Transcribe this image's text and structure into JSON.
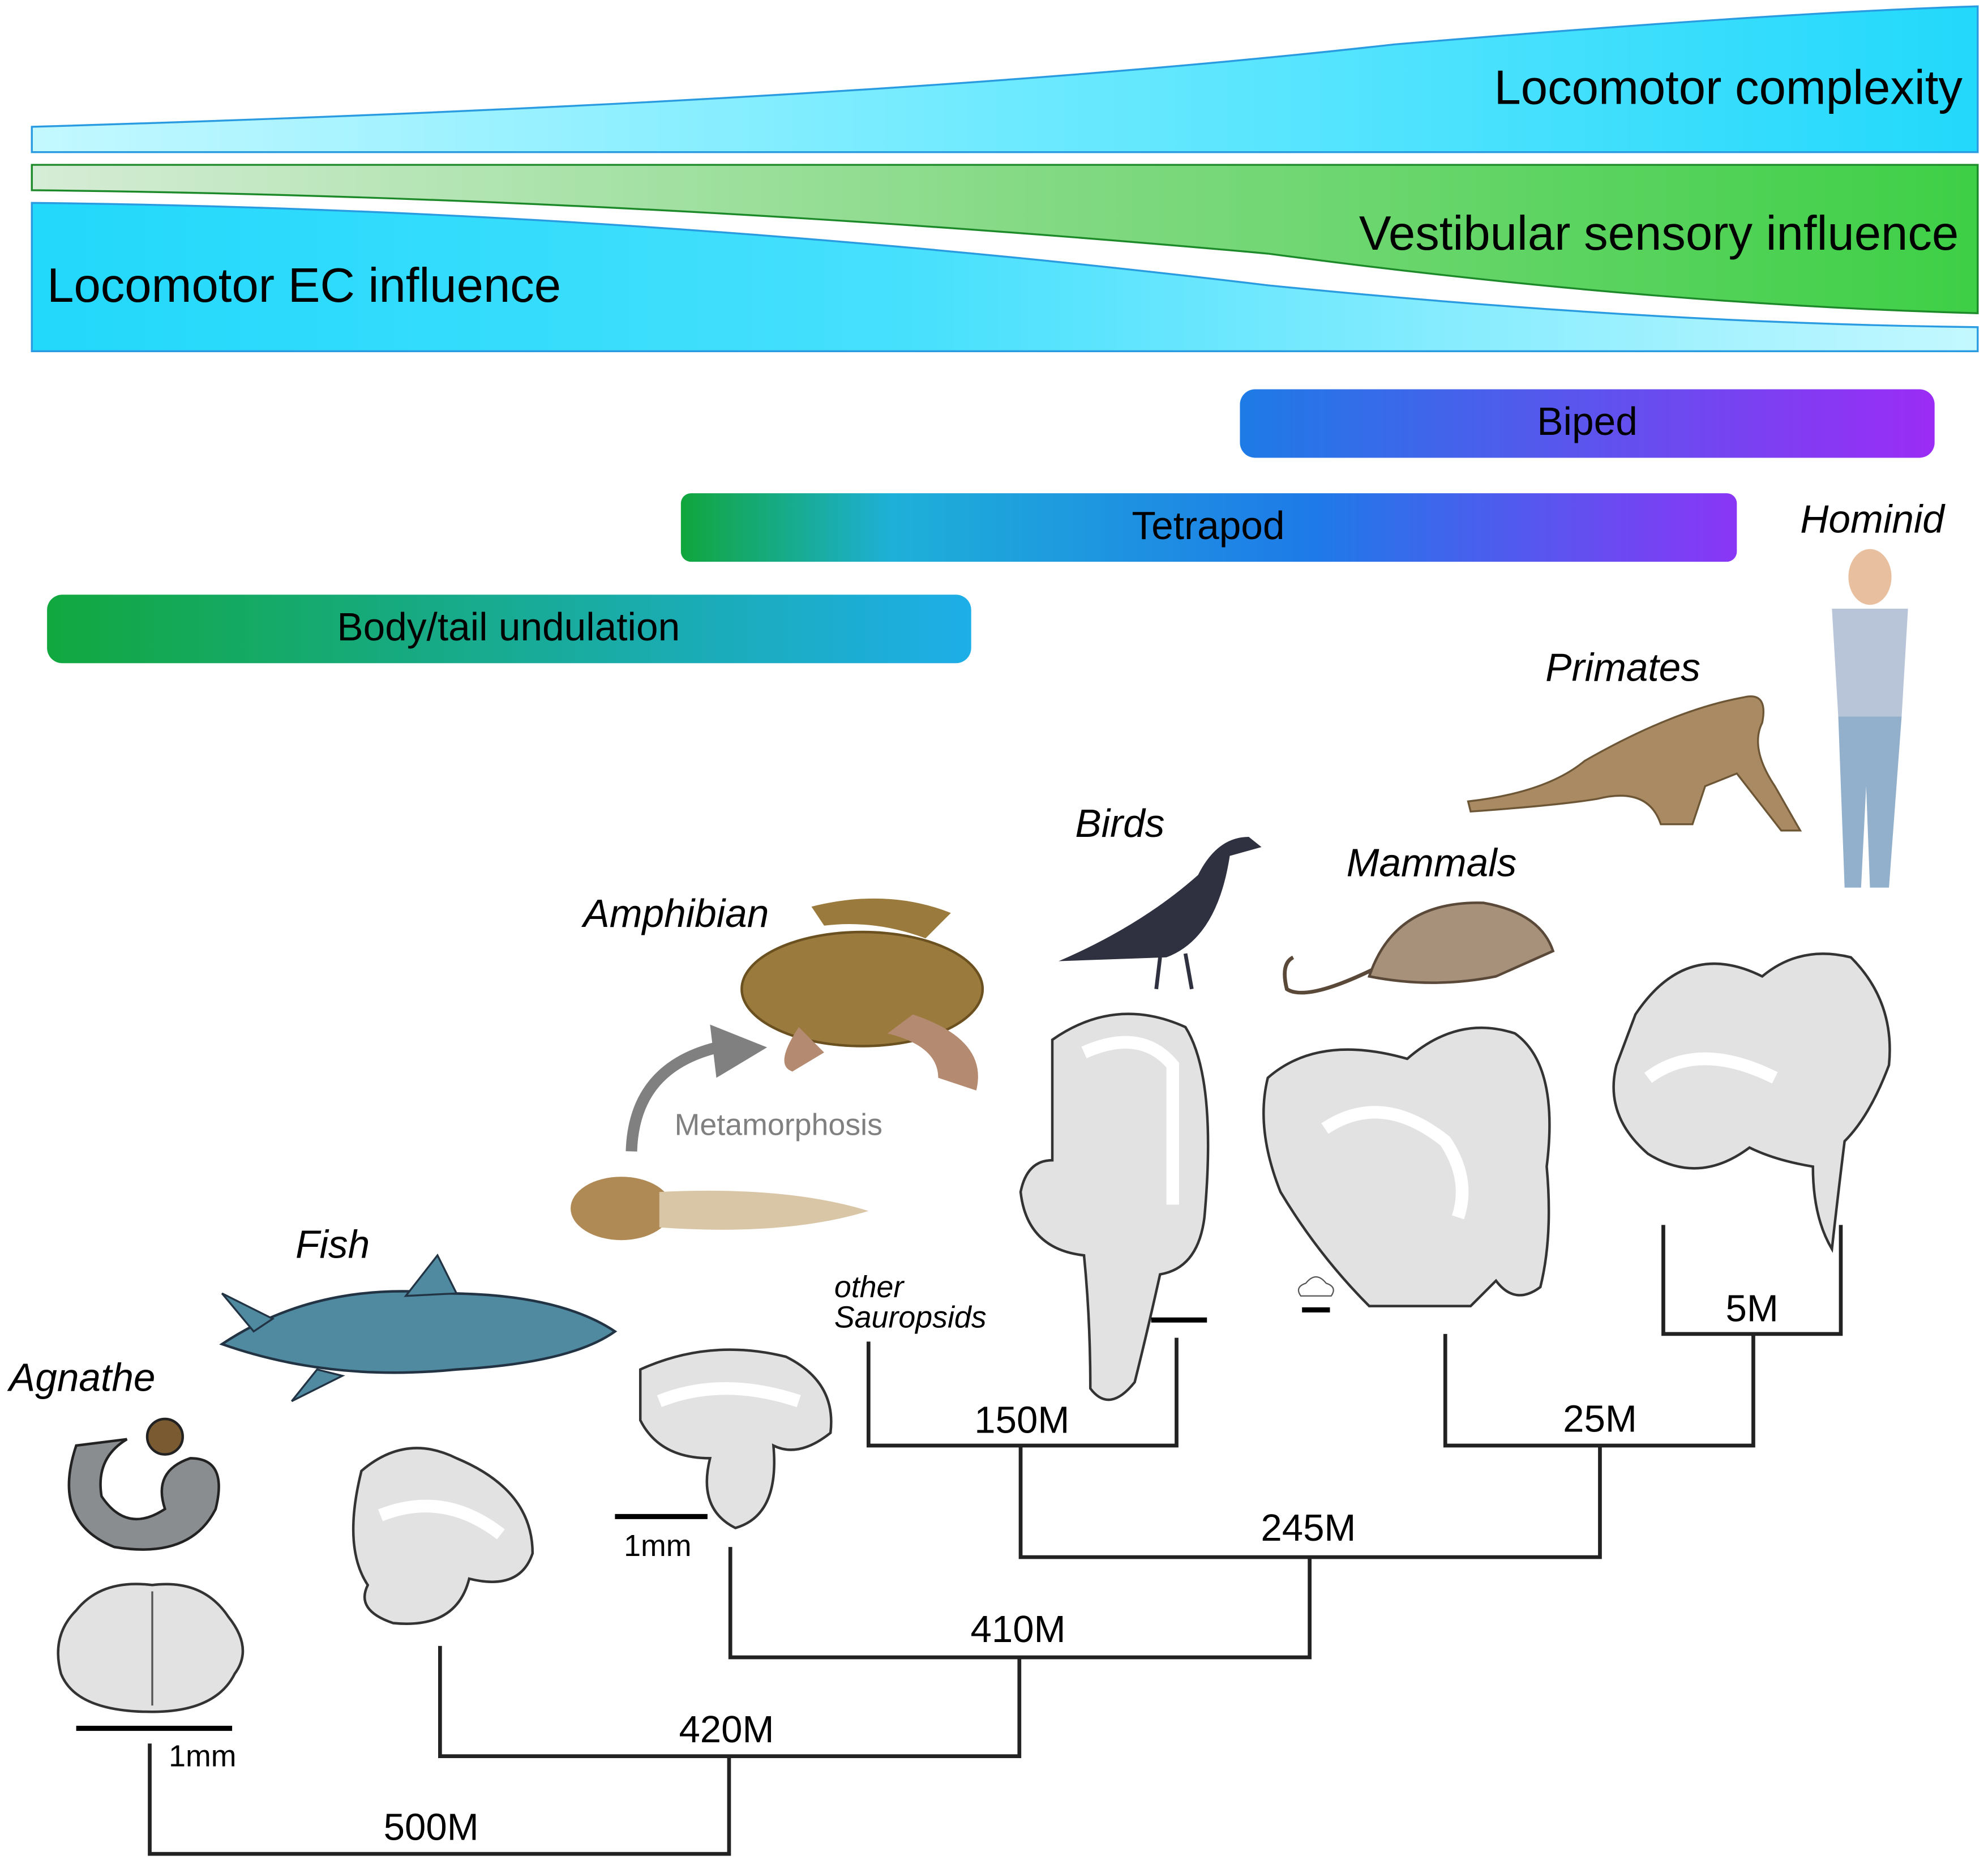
{
  "bands": {
    "locomotor_complexity": "Locomotor complexity",
    "vestibular_sensory_influence": "Vestibular sensory influence",
    "locomotor_ec_influence": "Locomotor EC influence"
  },
  "locomotion_modes": {
    "biped": "Biped",
    "tetrapod": "Tetrapod",
    "body_tail_undulation": "Body/tail undulation"
  },
  "taxa": {
    "agnathe": "Agnathe",
    "fish": "Fish",
    "amphibian": "Amphibian",
    "birds": "Birds",
    "other_sauropsids": [
      "other",
      "Sauropsids"
    ],
    "mammals": "Mammals",
    "primates": "Primates",
    "hominid": "Hominid"
  },
  "annotations": {
    "metamorphosis": "Metamorphosis",
    "scale_agnathe": "1mm",
    "scale_amphibian": "1mm"
  },
  "divergence_times": {
    "agnathe_rest": "500M",
    "fish_rest": "420M",
    "amphibian_amniotes": "410M",
    "sauropsids_mammals": "245M",
    "birds_sauropsids": "150M",
    "mammals_primates": "25M",
    "primates_hominid": "5M"
  },
  "colors": {
    "cyan": "#2ad9f7",
    "light_cyan": "#a8f3ff",
    "green": "#3fcf3f",
    "light_green": "#cfe9cf",
    "blue": "#1e6fe8",
    "purple": "#9b2cf5",
    "bar_green": "#12a83f",
    "bar_blue": "#1eaee5"
  }
}
